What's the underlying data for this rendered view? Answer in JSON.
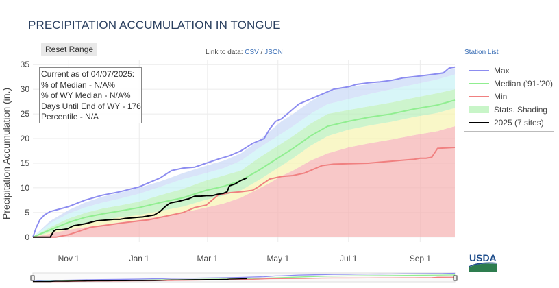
{
  "page": {
    "title": "PRECIPITATION ACCUMULATION IN TONGUE",
    "reset_label": "Reset Range",
    "link_prefix": "Link to data:",
    "csv_label": "CSV",
    "slash": "/",
    "json_label": "JSON",
    "station_list_label": "Station List",
    "logo_text": "USDA"
  },
  "info_box": {
    "line1": "Current as of 04/07/2025:",
    "line2": "% of Median - N/A%",
    "line3": "% of WY Median - N/A%",
    "line4": "Days Until End of WY - 176",
    "line5": "Percentile - N/A"
  },
  "chart_data": {
    "type": "line",
    "title": "PRECIPITATION ACCUMULATION IN TONGUE",
    "ylabel": "Precipitation Accumulation (in.)",
    "xlabel": "",
    "x_unit": "days since Oct 1 (water year)",
    "xlim": [
      0,
      365
    ],
    "ylim": [
      -1,
      36
    ],
    "x_ticks": [
      {
        "label": "Nov  1",
        "day": 31
      },
      {
        "label": "Jan  1",
        "day": 92
      },
      {
        "label": "Mar  1",
        "day": 151
      },
      {
        "label": "May  1",
        "day": 212
      },
      {
        "label": "Jul  1",
        "day": 273
      },
      {
        "label": "Sep  1",
        "day": 335
      }
    ],
    "y_ticks": [
      0,
      5,
      10,
      15,
      20,
      25,
      30,
      35
    ],
    "grid": true,
    "legend_position": "right",
    "series": [
      {
        "name": "Max",
        "color": "#8c8cf0",
        "x": [
          0,
          3,
          6,
          10,
          15,
          20,
          31,
          45,
          60,
          75,
          92,
          100,
          110,
          120,
          130,
          140,
          150,
          160,
          170,
          180,
          190,
          195,
          200,
          205,
          210,
          215,
          220,
          225,
          230,
          240,
          250,
          260,
          273,
          280,
          290,
          300,
          310,
          320,
          335,
          345,
          355,
          360,
          365
        ],
        "y": [
          0,
          2,
          3.5,
          4.5,
          5.2,
          5.5,
          6.2,
          7.5,
          8.5,
          9.2,
          10.2,
          11,
          12,
          13.5,
          14,
          14.2,
          15,
          15.8,
          16.5,
          17.5,
          19,
          19.5,
          20,
          22,
          23.5,
          24,
          25,
          26,
          27,
          28,
          29,
          30,
          30.5,
          31,
          31.3,
          31.5,
          31.8,
          32.3,
          32.7,
          33,
          33.3,
          34.3,
          34.5
        ]
      },
      {
        "name": "Median ('91-'20)",
        "color": "#90ee90",
        "x": [
          0,
          15,
          31,
          45,
          60,
          75,
          92,
          110,
          130,
          150,
          165,
          180,
          195,
          205,
          215,
          225,
          240,
          255,
          273,
          290,
          310,
          330,
          350,
          365
        ],
        "y": [
          0,
          1.5,
          3,
          4,
          4.7,
          5.3,
          6,
          7,
          8,
          9.5,
          10.3,
          11.5,
          13.5,
          15,
          16.5,
          18,
          20.5,
          22.5,
          23.5,
          24.3,
          25,
          26,
          26.8,
          27.8
        ]
      },
      {
        "name": "Min",
        "color": "#f08080",
        "x": [
          0,
          10,
          20,
          31,
          40,
          50,
          60,
          75,
          92,
          100,
          110,
          120,
          130,
          140,
          150,
          155,
          160,
          170,
          180,
          190,
          195,
          200,
          205,
          215,
          225,
          235,
          250,
          260,
          273,
          290,
          300,
          310,
          320,
          330,
          335,
          340,
          345,
          350,
          365
        ],
        "y": [
          0,
          0,
          0,
          0.5,
          1.2,
          2,
          2.3,
          2.8,
          3.3,
          3.5,
          4,
          4.5,
          5,
          6,
          6.5,
          7.5,
          8.5,
          9,
          9.2,
          9.5,
          10.2,
          11,
          11.8,
          12.3,
          12.5,
          13,
          14.5,
          14.8,
          14.9,
          15,
          15.2,
          15.4,
          15.6,
          15.8,
          16,
          16,
          16.2,
          18,
          18.2
        ]
      },
      {
        "name": "2025 (7 sites)",
        "color": "#000000",
        "x": [
          0,
          5,
          10,
          15,
          18,
          20,
          25,
          30,
          35,
          40,
          45,
          50,
          55,
          60,
          65,
          70,
          75,
          80,
          85,
          90,
          95,
          100,
          105,
          110,
          115,
          118,
          120,
          125,
          130,
          135,
          140,
          145,
          150,
          155,
          160,
          165,
          168,
          170,
          175,
          180,
          185
        ],
        "y": [
          0,
          0,
          0,
          0,
          1.2,
          1.5,
          1.5,
          1.7,
          2.3,
          2.5,
          2.7,
          3,
          3.3,
          3.4,
          3.5,
          3.6,
          3.6,
          3.8,
          3.9,
          4,
          4.1,
          4.3,
          4.5,
          5.2,
          6.3,
          6.8,
          7,
          7.2,
          7.5,
          7.8,
          8.3,
          8.3,
          8.4,
          8.4,
          8.7,
          8.9,
          9.2,
          10.4,
          10.8,
          11.5,
          12
        ]
      }
    ],
    "shading": {
      "name": "Stats. Shading",
      "x": [
        0,
        15,
        31,
        45,
        60,
        75,
        92,
        110,
        130,
        150,
        165,
        180,
        195,
        205,
        215,
        225,
        240,
        255,
        273,
        290,
        310,
        330,
        350,
        365
      ],
      "bands": [
        {
          "color": "#f5b0b0",
          "upper": [
            0,
            0.7,
            1.5,
            2,
            2.5,
            3,
            3.5,
            4.2,
            5,
            6,
            6.8,
            8,
            9.8,
            11,
            12.4,
            13.5,
            15.5,
            17,
            18.2,
            19,
            19.8,
            20.7,
            21.5,
            22.5
          ]
        },
        {
          "color": "#f7f3b0",
          "upper": [
            0,
            1,
            2,
            2.8,
            3.5,
            4,
            4.5,
            5.3,
            6.2,
            7.6,
            8.4,
            9.5,
            11.5,
            13,
            14.5,
            16,
            18.5,
            20.5,
            21.8,
            22.6,
            23.4,
            24.4,
            25.2,
            26.2
          ]
        },
        {
          "color": "#b8f0b8",
          "upper": [
            0,
            2,
            3.8,
            4.9,
            5.8,
            6.4,
            7.2,
            8.5,
            9.8,
            11.5,
            12.5,
            13.5,
            16,
            17.5,
            19,
            20.5,
            23,
            25,
            25.8,
            26.5,
            27.3,
            28.3,
            29.2,
            30
          ]
        },
        {
          "color": "#c8f2f5",
          "upper": [
            0,
            2.8,
            4.8,
            6,
            7,
            7.8,
            8.8,
            10.2,
            11.8,
            13,
            14,
            15.5,
            18,
            19.5,
            21,
            22.5,
            25,
            27,
            28,
            29,
            30,
            31,
            32,
            33
          ]
        },
        {
          "color": "#c9d8f7",
          "upper": [
            0,
            3.3,
            5.5,
            7,
            8.2,
            9,
            10,
            11.3,
            13,
            14.5,
            15.5,
            17,
            19.5,
            21.5,
            23.5,
            25,
            27.5,
            29.5,
            30.5,
            31,
            31.7,
            32.5,
            33.2,
            34.3
          ]
        }
      ]
    },
    "navigator": {
      "visible": true
    }
  },
  "legend_items": [
    {
      "label": "Max",
      "color": "#8c8cf0",
      "kind": "line"
    },
    {
      "label": "Median ('91-'20)",
      "color": "#90ee90",
      "kind": "line"
    },
    {
      "label": "Min",
      "color": "#f08080",
      "kind": "line"
    },
    {
      "label": "Stats. Shading",
      "color": "#c8f5c8",
      "kind": "fill"
    },
    {
      "label": "2025 (7 sites)",
      "color": "#000000",
      "kind": "line"
    }
  ],
  "colors": {
    "title": "#2a3f5f",
    "link": "#3b6fb6",
    "usda_blue": "#1f4e8c",
    "usda_green": "#2e7d4f"
  }
}
